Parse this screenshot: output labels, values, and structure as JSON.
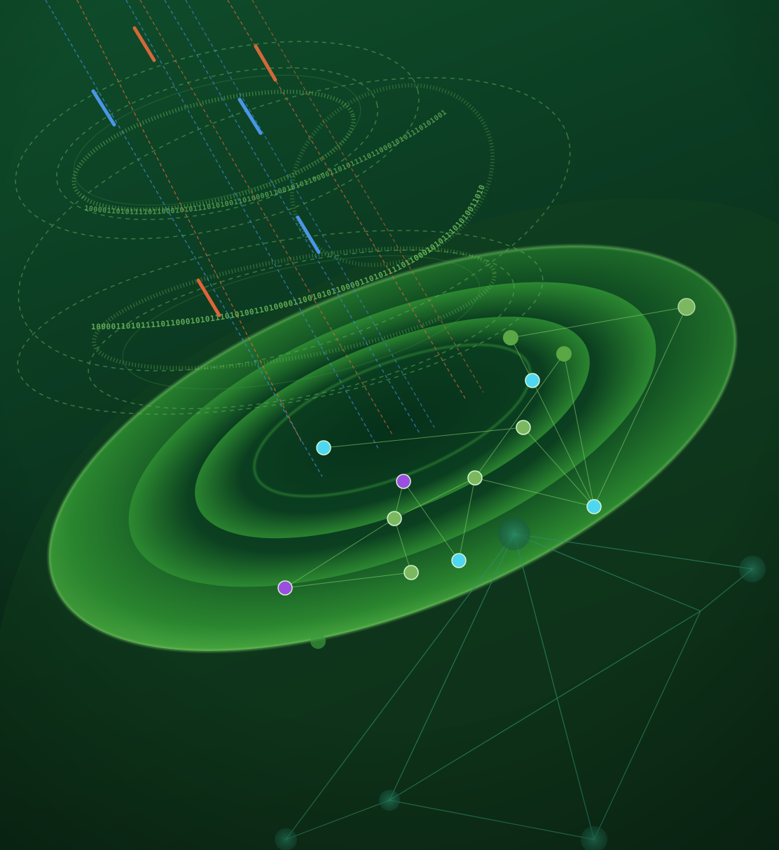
{
  "artwork": {
    "binary_text": "1000011010111101100010101110101001101000011001010110000110101111011000101011101010011010"
  },
  "colors": {
    "bg_top": "#0e4a2a",
    "bg_mid": "#0c3d22",
    "bg_bottom": "#0a2214",
    "swirl_bright": "#4caf3c",
    "swirl_mid": "#2f8a2c",
    "swirl_dark": "#0d3a1c",
    "ring": "#5fae5a",
    "beam_blue": "#3f8bd8",
    "beam_orange": "#d96a3a",
    "node_cyan": "#4fd6f0",
    "node_purple": "#9b4fe0",
    "node_green": "#77b35a",
    "node_teal": "#1f6e55",
    "edge": "#7fbf6a",
    "edge_dark": "#2f7f62"
  }
}
